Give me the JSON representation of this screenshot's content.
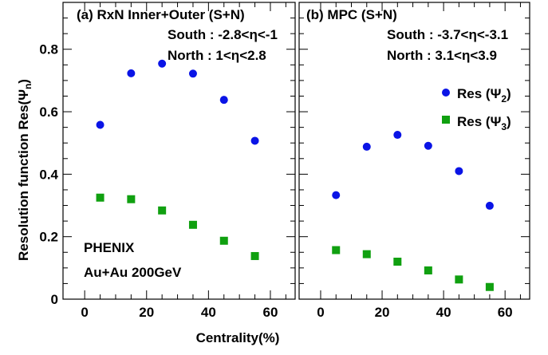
{
  "colors": {
    "psi2": "#0a14e6",
    "psi3": "#10a010",
    "frame": "#000000"
  },
  "axes": {
    "ylabel": "Resolution function Res(Ψ",
    "ylabel_sub": "n",
    "ylabel_close": ")",
    "xlabel": "Centrality(%)"
  },
  "chart_data": [
    {
      "type": "scatter",
      "panel_label": "(a) RxN Inner+Outer (S+N)",
      "annotations": {
        "south": "South : -2.8<η<-1",
        "north": "North : 1<η<2.8",
        "experiment": "PHENIX",
        "system": "Au+Au 200GeV"
      },
      "xlim": [
        -7,
        68
      ],
      "ylim": [
        0,
        0.95
      ],
      "xticks": [
        0,
        20,
        40,
        60
      ],
      "yticks": [
        0,
        0.2,
        0.4,
        0.6,
        0.8
      ],
      "series": [
        {
          "name": "Res (Ψ2)",
          "marker": "circle",
          "color": "#0a14e6",
          "x": [
            5,
            15,
            25,
            35,
            45,
            55
          ],
          "y": [
            0.558,
            0.723,
            0.754,
            0.722,
            0.638,
            0.507
          ]
        },
        {
          "name": "Res (Ψ3)",
          "marker": "square",
          "color": "#10a010",
          "x": [
            5,
            15,
            25,
            35,
            45,
            55
          ],
          "y": [
            0.325,
            0.32,
            0.284,
            0.238,
            0.187,
            0.138
          ]
        }
      ]
    },
    {
      "type": "scatter",
      "panel_label": "(b) MPC (S+N)",
      "annotations": {
        "south": "South : -3.7<η<-3.1",
        "north": "North : 3.1<η<3.9"
      },
      "xlim": [
        -7,
        68
      ],
      "ylim": [
        0,
        0.95
      ],
      "xticks": [
        0,
        20,
        40,
        60
      ],
      "legend": {
        "position": "right",
        "entries": [
          {
            "text": "Res (Ψ",
            "sub": "2",
            "close": ")"
          },
          {
            "text": "Res (Ψ",
            "sub": "3",
            "close": ")"
          }
        ]
      },
      "series": [
        {
          "name": "Res (Ψ2)",
          "marker": "circle",
          "color": "#0a14e6",
          "x": [
            5,
            15,
            25,
            35,
            45,
            55
          ],
          "y": [
            0.333,
            0.488,
            0.526,
            0.491,
            0.41,
            0.299
          ]
        },
        {
          "name": "Res (Ψ3)",
          "marker": "square",
          "color": "#10a010",
          "x": [
            5,
            15,
            25,
            35,
            45,
            55
          ],
          "y": [
            0.157,
            0.144,
            0.12,
            0.092,
            0.063,
            0.039
          ]
        }
      ]
    }
  ]
}
